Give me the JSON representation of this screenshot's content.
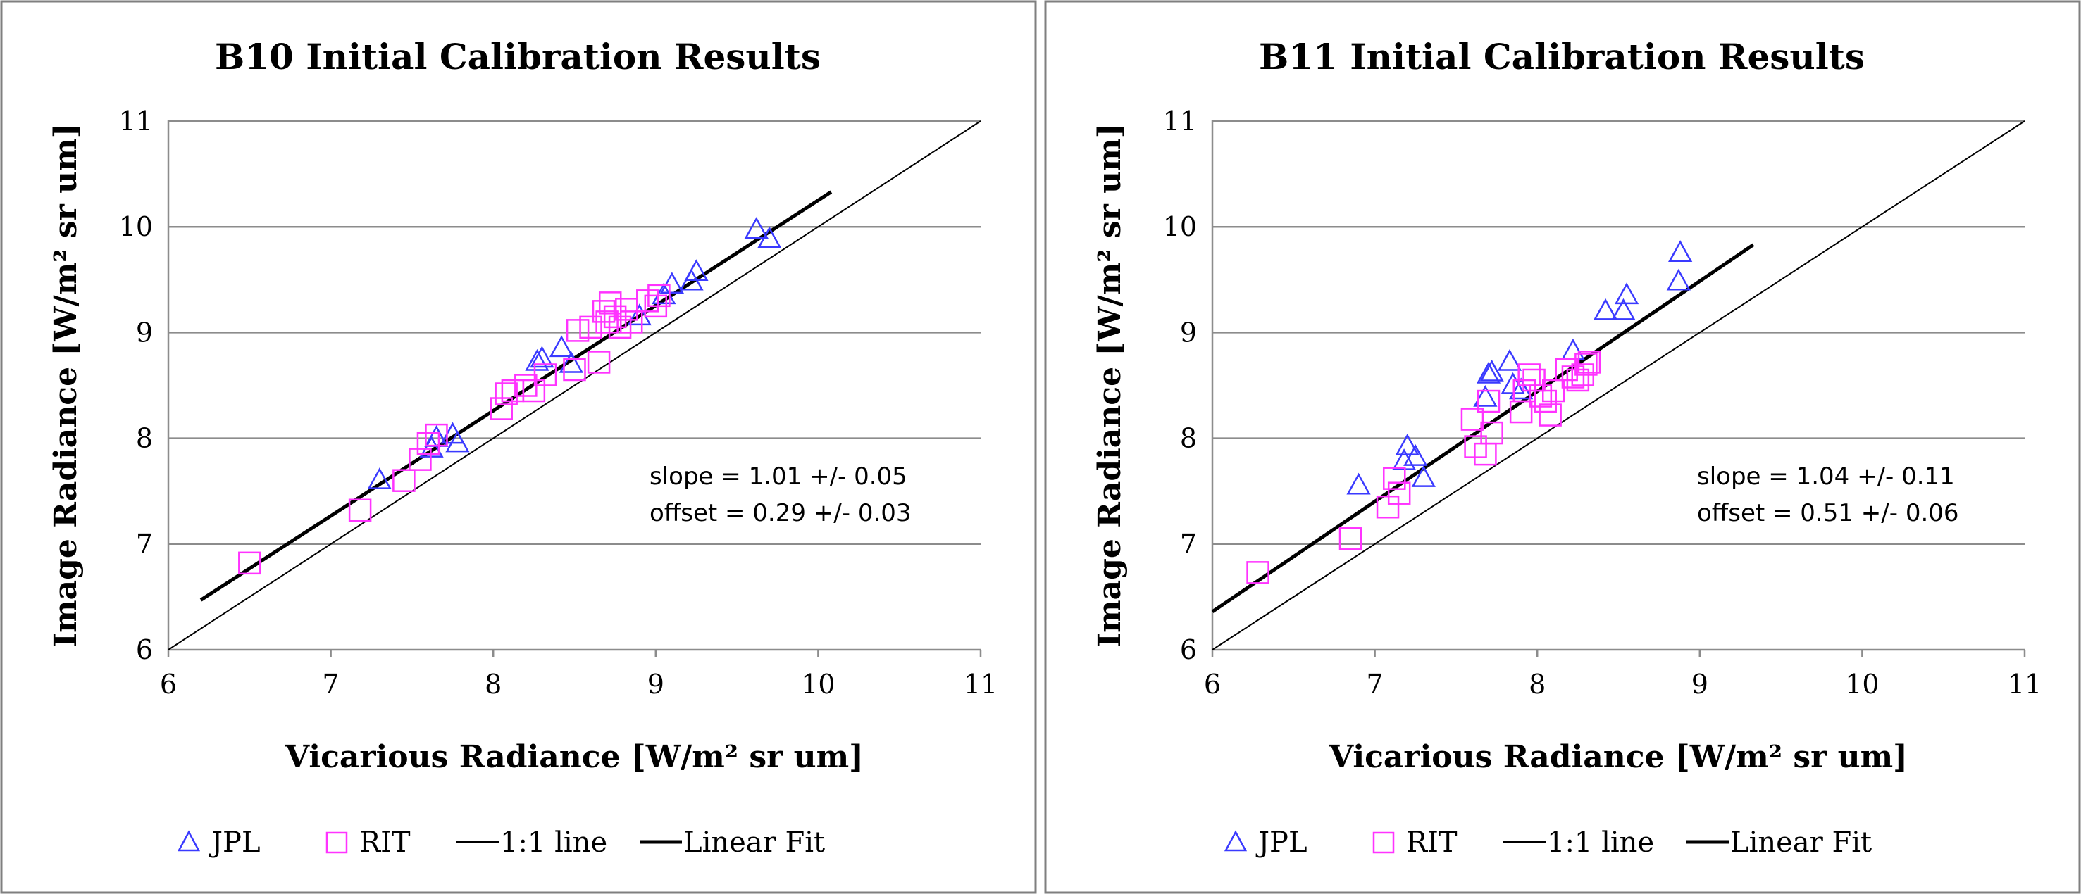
{
  "chart_data": [
    {
      "type": "scatter",
      "title": "B10 Initial Calibration Results",
      "xlabel": "Vicarious Radiance [W/m² sr um]",
      "ylabel": "Image Radiance [W/m² sr um]",
      "xlim": [
        6,
        11
      ],
      "ylim": [
        6,
        11
      ],
      "xticks": [
        "6",
        "7",
        "8",
        "9",
        "10",
        "11"
      ],
      "yticks": [
        "6",
        "7",
        "8",
        "9",
        "10",
        "11"
      ],
      "grid": "horizontal",
      "annotation": {
        "slope": "slope = 1.01 +/- 0.05",
        "offset": "offset = 0.29 +/- 0.03"
      },
      "series": [
        {
          "name": "JPL",
          "marker": "triangle",
          "color": "#3a3aff",
          "points": [
            [
              7.3,
              7.6
            ],
            [
              7.62,
              7.9
            ],
            [
              7.65,
              8.0
            ],
            [
              7.75,
              8.03
            ],
            [
              7.78,
              7.95
            ],
            [
              8.27,
              8.72
            ],
            [
              8.3,
              8.75
            ],
            [
              8.42,
              8.85
            ],
            [
              8.48,
              8.7
            ],
            [
              8.9,
              9.15
            ],
            [
              9.05,
              9.35
            ],
            [
              9.1,
              9.45
            ],
            [
              9.22,
              9.48
            ],
            [
              9.25,
              9.57
            ],
            [
              9.62,
              9.97
            ],
            [
              9.7,
              9.88
            ]
          ]
        },
        {
          "name": "RIT",
          "marker": "square",
          "color": "#ff33ff",
          "points": [
            [
              6.5,
              6.82
            ],
            [
              7.18,
              7.32
            ],
            [
              7.45,
              7.6
            ],
            [
              7.55,
              7.8
            ],
            [
              7.6,
              7.95
            ],
            [
              7.65,
              8.03
            ],
            [
              8.05,
              8.28
            ],
            [
              8.08,
              8.42
            ],
            [
              8.12,
              8.45
            ],
            [
              8.2,
              8.5
            ],
            [
              8.25,
              8.45
            ],
            [
              8.32,
              8.6
            ],
            [
              8.5,
              8.65
            ],
            [
              8.52,
              9.02
            ],
            [
              8.6,
              9.05
            ],
            [
              8.65,
              8.72
            ],
            [
              8.68,
              9.2
            ],
            [
              8.7,
              9.1
            ],
            [
              8.72,
              9.28
            ],
            [
              8.75,
              9.15
            ],
            [
              8.78,
              9.05
            ],
            [
              8.82,
              9.22
            ],
            [
              8.85,
              9.1
            ],
            [
              8.95,
              9.3
            ],
            [
              9.0,
              9.25
            ],
            [
              9.02,
              9.35
            ]
          ]
        },
        {
          "name": "1:1 line",
          "style": "thin",
          "points": [
            [
              6,
              6
            ],
            [
              11,
              11
            ]
          ]
        },
        {
          "name": "Linear Fit",
          "style": "thick",
          "points": [
            [
              6.2,
              6.47
            ],
            [
              10.08,
              10.33
            ]
          ]
        }
      ]
    },
    {
      "type": "scatter",
      "title": "B11 Initial Calibration Results",
      "xlabel": "Vicarious Radiance [W/m² sr um]",
      "ylabel": "Image Radiance [W/m² sr um]",
      "xlim": [
        6,
        11
      ],
      "ylim": [
        6,
        11
      ],
      "xticks": [
        "6",
        "7",
        "8",
        "9",
        "10",
        "11"
      ],
      "yticks": [
        "6",
        "7",
        "8",
        "9",
        "10",
        "11"
      ],
      "grid": "horizontal",
      "annotation": {
        "slope": "slope = 1.04 +/- 0.11",
        "offset": "offset = 0.51 +/- 0.06"
      },
      "series": [
        {
          "name": "JPL",
          "marker": "triangle",
          "color": "#3a3aff",
          "points": [
            [
              6.9,
              7.55
            ],
            [
              7.18,
              7.78
            ],
            [
              7.2,
              7.92
            ],
            [
              7.25,
              7.82
            ],
            [
              7.3,
              7.62
            ],
            [
              7.68,
              8.38
            ],
            [
              7.7,
              8.6
            ],
            [
              7.72,
              8.62
            ],
            [
              7.83,
              8.72
            ],
            [
              7.85,
              8.5
            ],
            [
              7.9,
              8.45
            ],
            [
              8.22,
              8.82
            ],
            [
              8.42,
              9.2
            ],
            [
              8.53,
              9.2
            ],
            [
              8.55,
              9.35
            ],
            [
              8.87,
              9.48
            ],
            [
              8.88,
              9.75
            ]
          ]
        },
        {
          "name": "RIT",
          "marker": "square",
          "color": "#ff33ff",
          "points": [
            [
              6.28,
              6.73
            ],
            [
              6.85,
              7.05
            ],
            [
              7.08,
              7.35
            ],
            [
              7.12,
              7.62
            ],
            [
              7.15,
              7.48
            ],
            [
              7.6,
              8.18
            ],
            [
              7.62,
              7.92
            ],
            [
              7.68,
              7.85
            ],
            [
              7.7,
              8.35
            ],
            [
              7.72,
              8.05
            ],
            [
              7.9,
              8.25
            ],
            [
              7.92,
              8.45
            ],
            [
              7.95,
              8.6
            ],
            [
              7.98,
              8.55
            ],
            [
              8.02,
              8.4
            ],
            [
              8.05,
              8.35
            ],
            [
              8.08,
              8.22
            ],
            [
              8.1,
              8.45
            ],
            [
              8.18,
              8.65
            ],
            [
              8.22,
              8.58
            ],
            [
              8.25,
              8.55
            ],
            [
              8.28,
              8.6
            ],
            [
              8.3,
              8.7
            ],
            [
              8.32,
              8.72
            ]
          ]
        },
        {
          "name": "1:1 line",
          "style": "thin",
          "points": [
            [
              6,
              6
            ],
            [
              11,
              11
            ]
          ]
        },
        {
          "name": "Linear Fit",
          "style": "thick",
          "points": [
            [
              6,
              6.36
            ],
            [
              9.33,
              9.83
            ]
          ]
        }
      ]
    }
  ]
}
